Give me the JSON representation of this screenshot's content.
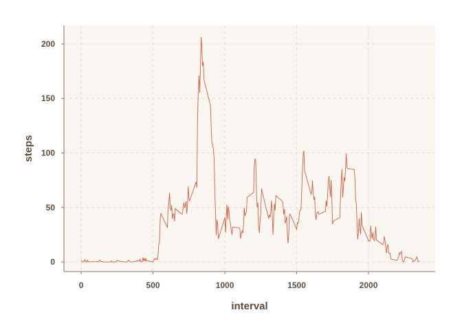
{
  "chart_data": {
    "type": "line",
    "x_label": "interval",
    "y_label": "steps",
    "x": [
      0,
      5,
      10,
      15,
      20,
      25,
      30,
      35,
      40,
      45,
      50,
      55,
      100,
      105,
      110,
      115,
      120,
      125,
      130,
      135,
      140,
      145,
      150,
      155,
      200,
      205,
      210,
      215,
      220,
      225,
      230,
      235,
      240,
      245,
      250,
      255,
      300,
      305,
      310,
      315,
      320,
      325,
      330,
      335,
      340,
      345,
      350,
      355,
      400,
      405,
      410,
      415,
      420,
      425,
      430,
      435,
      440,
      445,
      450,
      455,
      500,
      505,
      510,
      515,
      520,
      525,
      530,
      535,
      540,
      545,
      550,
      555,
      600,
      605,
      610,
      615,
      620,
      625,
      630,
      635,
      640,
      645,
      650,
      655,
      700,
      705,
      710,
      715,
      720,
      725,
      730,
      735,
      740,
      745,
      750,
      755,
      800,
      805,
      810,
      815,
      820,
      825,
      830,
      835,
      840,
      845,
      850,
      855,
      900,
      905,
      910,
      915,
      920,
      925,
      930,
      935,
      940,
      945,
      950,
      955,
      1000,
      1005,
      1010,
      1015,
      1020,
      1025,
      1030,
      1035,
      1040,
      1045,
      1050,
      1055,
      1100,
      1105,
      1110,
      1115,
      1120,
      1125,
      1130,
      1135,
      1140,
      1145,
      1150,
      1155,
      1200,
      1205,
      1210,
      1215,
      1220,
      1225,
      1230,
      1235,
      1240,
      1245,
      1250,
      1255,
      1300,
      1305,
      1310,
      1315,
      1320,
      1325,
      1330,
      1335,
      1340,
      1345,
      1350,
      1355,
      1400,
      1405,
      1410,
      1415,
      1420,
      1425,
      1430,
      1435,
      1440,
      1445,
      1450,
      1455,
      1500,
      1505,
      1510,
      1515,
      1520,
      1525,
      1530,
      1535,
      1540,
      1545,
      1550,
      1555,
      1600,
      1605,
      1610,
      1615,
      1620,
      1625,
      1630,
      1635,
      1640,
      1645,
      1650,
      1655,
      1700,
      1705,
      1710,
      1715,
      1720,
      1725,
      1730,
      1735,
      1740,
      1745,
      1750,
      1755,
      1800,
      1805,
      1810,
      1815,
      1820,
      1825,
      1830,
      1835,
      1840,
      1845,
      1850,
      1855,
      1900,
      1905,
      1910,
      1915,
      1920,
      1925,
      1930,
      1935,
      1940,
      1945,
      1950,
      1955,
      2000,
      2005,
      2010,
      2015,
      2020,
      2025,
      2030,
      2035,
      2040,
      2045,
      2050,
      2055,
      2100,
      2105,
      2110,
      2115,
      2120,
      2125,
      2130,
      2135,
      2140,
      2145,
      2150,
      2155,
      2200,
      2205,
      2210,
      2215,
      2220,
      2225,
      2230,
      2235,
      2240,
      2245,
      2250,
      2255,
      2300,
      2305,
      2310,
      2315,
      2320,
      2325,
      2330,
      2335,
      2340,
      2345,
      2350,
      2355
    ],
    "series": [
      {
        "name": "steps",
        "color": "#d2603f",
        "values": [
          1.7,
          0.3,
          0.1,
          0.2,
          0.1,
          2.1,
          0.5,
          0.9,
          0,
          1.5,
          0.3,
          0.1,
          0.3,
          0.7,
          0.2,
          0.3,
          0,
          1.1,
          1.8,
          0.2,
          0.2,
          0.4,
          0.3,
          0,
          0,
          0,
          1.1,
          0,
          0,
          0.1,
          0,
          0.2,
          0,
          0,
          1.5,
          0.9,
          0,
          0,
          0,
          0,
          0.2,
          0.6,
          1.6,
          0.6,
          0.5,
          0.1,
          0,
          0,
          1.2,
          0.9,
          2.6,
          0,
          0.3,
          0.4,
          4.1,
          0.7,
          3.5,
          0.8,
          3.1,
          1.1,
          0,
          1.6,
          3,
          2.2,
          3.3,
          3,
          2.1,
          6.1,
          16,
          18.3,
          39.5,
          44.5,
          31.5,
          49.3,
          53.8,
          63.5,
          50,
          47.1,
          52.2,
          39.3,
          44,
          44.2,
          37.4,
          49,
          43.8,
          44.4,
          50.5,
          54.5,
          49.9,
          51,
          55.7,
          44.3,
          52.3,
          69.5,
          57.8,
          56.2,
          73.4,
          68.2,
          129.4,
          157.5,
          171.2,
          155.4,
          177.3,
          206.2,
          195.9,
          179.6,
          183.4,
          167,
          143.5,
          124,
          109.1,
          108.1,
          103.7,
          95.9,
          66.2,
          45.2,
          24.8,
          38.8,
          35,
          21.1,
          40.6,
          27,
          42.4,
          52.7,
          38.9,
          50.8,
          44.3,
          37.4,
          34.7,
          28.3,
          25.1,
          31.9,
          31.4,
          29.7,
          21.3,
          25.5,
          28.4,
          26.5,
          33.4,
          50,
          42,
          44.6,
          46,
          59.2,
          63.9,
          87.7,
          94.8,
          92.8,
          63.4,
          50.2,
          54.5,
          32.4,
          26.5,
          37.7,
          45.1,
          67.3,
          42.3,
          39.9,
          43.3,
          41,
          46.2,
          56.4,
          42.8,
          25.1,
          40,
          53.5,
          47.3,
          60.8,
          55.8,
          52,
          43.6,
          48.7,
          35.5,
          37.5,
          41.8,
          27.5,
          17.1,
          26.1,
          43.6,
          43.8,
          30,
          36.1,
          35.5,
          38.8,
          46,
          47.8,
          48.1,
          65.3,
          82.9,
          98.7,
          102.1,
          84,
          62.1,
          64.1,
          74.5,
          63.2,
          56.9,
          59.8,
          43.9,
          38.6,
          44.7,
          45.5,
          46.2,
          43.7,
          46.6,
          56.3,
          50.7,
          61.2,
          72.7,
          78.9,
          68.9,
          59.7,
          75.1,
          56.5,
          34.8,
          37.5,
          40.7,
          58,
          74.7,
          85.3,
          59.3,
          67.8,
          77.7,
          74.2,
          85.3,
          99.5,
          86.6,
          85.6,
          84.9,
          77.8,
          58,
          53.4,
          36.3,
          20.7,
          27.4,
          40,
          30.2,
          25.5,
          45.7,
          33.5,
          19.6,
          19,
          19.3,
          33.3,
          26.8,
          21.2,
          27.3,
          21.3,
          19.5,
          21.3,
          32.3,
          20.2,
          15.9,
          17.2,
          23.5,
          19.2,
          12.5,
          8,
          14.7,
          16.3,
          8.7,
          7.8,
          8.1,
          2.6,
          1.5,
          3.7,
          4.8,
          8.5,
          7.1,
          8.7,
          9.8,
          2.2,
          0.3,
          0.1,
          1.6,
          4.6,
          3.3,
          2.8,
          0,
          0.8,
          1,
          1.6,
          2.6,
          4.7,
          3.3,
          0.6,
          0.2,
          1.1
        ]
      }
    ],
    "xlim": [
      -120,
      2464
    ],
    "ylim": [
      -8.8,
      217
    ],
    "xticks": [
      0,
      500,
      1000,
      1500,
      2000
    ],
    "yticks": [
      0,
      50,
      100,
      150,
      200
    ],
    "grid": true
  }
}
